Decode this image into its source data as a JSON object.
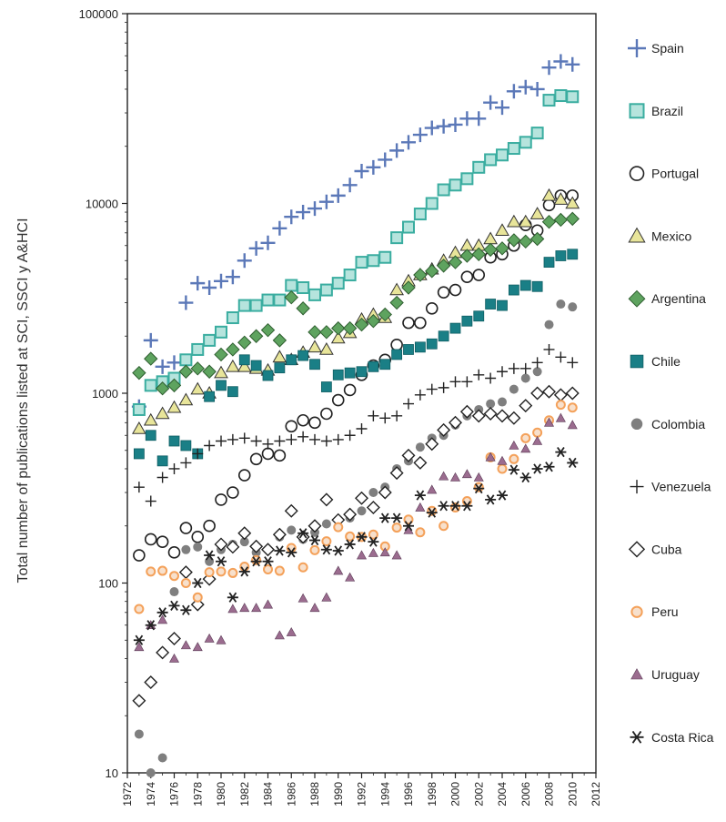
{
  "chart_data": {
    "type": "scatter",
    "title": "",
    "xlabel": "",
    "ylabel": "Total number of publications listed at SCI, SSCI y A&HCI",
    "yscale": "log",
    "ylim": [
      10,
      100000
    ],
    "xlim": [
      1972,
      2012
    ],
    "x_ticks": [
      "1972",
      "1974",
      "1976",
      "1978",
      "1980",
      "1982",
      "1984",
      "1986",
      "1988",
      "1990",
      "1992",
      "1994",
      "1996",
      "1998",
      "2000",
      "2002",
      "2004",
      "2006",
      "2008",
      "2010",
      "2012"
    ],
    "y_ticks": [
      "10",
      "100",
      "1000",
      "10000",
      "100000"
    ],
    "grid": false,
    "legend_position": "right",
    "x": [
      1973,
      1974,
      1975,
      1976,
      1977,
      1978,
      1979,
      1980,
      1981,
      1982,
      1983,
      1984,
      1985,
      1986,
      1987,
      1988,
      1989,
      1990,
      1991,
      1992,
      1993,
      1994,
      1995,
      1996,
      1997,
      1998,
      1999,
      2000,
      2001,
      2002,
      2003,
      2004,
      2005,
      2006,
      2007,
      2008,
      2009,
      2010
    ],
    "series": [
      {
        "name": "Spain",
        "marker": "plus-thick",
        "color": "#5b78b8",
        "values": [
          850,
          1900,
          1380,
          1450,
          3000,
          3800,
          3600,
          3900,
          4100,
          5000,
          5800,
          6200,
          7400,
          8500,
          9000,
          9400,
          10200,
          11000,
          12500,
          14800,
          15500,
          17000,
          19000,
          21000,
          23000,
          25000,
          25500,
          26000,
          28000,
          28000,
          34000,
          32000,
          39000,
          41000,
          40000,
          52000,
          56000,
          54000
        ]
      },
      {
        "name": "Brazil",
        "marker": "square-open",
        "color": "#3aada0",
        "values": [
          820,
          1100,
          1150,
          1200,
          1500,
          1700,
          1900,
          2100,
          2500,
          2900,
          2900,
          3100,
          3100,
          3700,
          3600,
          3300,
          3500,
          3800,
          4200,
          4900,
          5000,
          5200,
          6600,
          7500,
          8800,
          10000,
          11800,
          12500,
          13500,
          15500,
          17000,
          18000,
          19500,
          21000,
          23500,
          35000,
          37000,
          36500
        ]
      },
      {
        "name": "Portugal",
        "marker": "circle-open",
        "color": "#222222",
        "values": [
          140,
          170,
          165,
          145,
          195,
          175,
          200,
          275,
          300,
          370,
          450,
          480,
          470,
          670,
          720,
          700,
          780,
          920,
          1040,
          1250,
          1400,
          1500,
          1800,
          2350,
          2350,
          2800,
          3400,
          3500,
          4100,
          4200,
          5200,
          5400,
          6000,
          7700,
          7200,
          9800,
          11000,
          11000
        ]
      },
      {
        "name": "Mexico",
        "marker": "triangle",
        "color": "#e8e59a",
        "values": [
          650,
          720,
          780,
          840,
          920,
          1050,
          1000,
          1280,
          1380,
          1380,
          1350,
          1320,
          1550,
          1500,
          1640,
          1750,
          1700,
          1950,
          2080,
          2450,
          2600,
          2500,
          3500,
          3900,
          4200,
          4500,
          5000,
          5500,
          6000,
          6000,
          6500,
          7200,
          8000,
          8000,
          8800,
          11000,
          10500,
          10000
        ]
      },
      {
        "name": "Argentina",
        "marker": "diamond",
        "color": "#5ea35f",
        "values": [
          1280,
          1520,
          1060,
          1100,
          1300,
          1350,
          1300,
          1600,
          1700,
          1850,
          2000,
          2150,
          1900,
          3200,
          2800,
          2100,
          2100,
          2200,
          2200,
          2300,
          2400,
          2600,
          3000,
          3600,
          4200,
          4400,
          4700,
          4900,
          5300,
          5400,
          5700,
          5800,
          6400,
          6300,
          6500,
          8000,
          8200,
          8300
        ]
      },
      {
        "name": "Chile",
        "marker": "square",
        "color": "#1a7f86",
        "values": [
          480,
          600,
          440,
          560,
          530,
          480,
          960,
          1100,
          1020,
          1500,
          1400,
          1240,
          1360,
          1500,
          1580,
          1420,
          1080,
          1250,
          1280,
          1300,
          1380,
          1420,
          1600,
          1700,
          1750,
          1820,
          2000,
          2200,
          2400,
          2550,
          2950,
          2900,
          3500,
          3700,
          3650,
          4900,
          5300,
          5400
        ]
      },
      {
        "name": "Colombia",
        "marker": "circle",
        "color": "#7f7f7f",
        "values": [
          16,
          10,
          12,
          90,
          150,
          155,
          130,
          150,
          160,
          165,
          145,
          150,
          175,
          190,
          170,
          185,
          205,
          215,
          220,
          240,
          300,
          320,
          400,
          440,
          520,
          580,
          600,
          680,
          760,
          820,
          880,
          900,
          1050,
          1200,
          1300,
          2300,
          2950,
          2850
        ]
      },
      {
        "name": "Venezuela",
        "marker": "plus-thin",
        "color": "#222222",
        "values": [
          320,
          270,
          360,
          400,
          430,
          480,
          530,
          560,
          570,
          580,
          560,
          540,
          560,
          570,
          590,
          570,
          560,
          570,
          600,
          650,
          760,
          740,
          760,
          880,
          980,
          1050,
          1070,
          1150,
          1150,
          1250,
          1200,
          1300,
          1350,
          1350,
          1450,
          1700,
          1550,
          1450
        ]
      },
      {
        "name": "Cuba",
        "marker": "diamond-open",
        "color": "#222222",
        "values": [
          24,
          30,
          43,
          51,
          114,
          77,
          105,
          160,
          155,
          183,
          156,
          150,
          180,
          240,
          175,
          200,
          275,
          215,
          230,
          280,
          250,
          300,
          380,
          470,
          430,
          540,
          640,
          700,
          800,
          760,
          780,
          760,
          740,
          860,
          1000,
          1020,
          980,
          1000
        ]
      },
      {
        "name": "Peru",
        "marker": "circle-orange",
        "color": "#f4a15a",
        "values": [
          73,
          115,
          116,
          109,
          100,
          84,
          114,
          115,
          113,
          122,
          132,
          118,
          116,
          153,
          121,
          149,
          166,
          197,
          176,
          175,
          180,
          156,
          196,
          216,
          185,
          240,
          200,
          250,
          270,
          320,
          460,
          400,
          450,
          580,
          620,
          720,
          870,
          840
        ]
      },
      {
        "name": "Uruguay",
        "marker": "triangle-small",
        "color": "#9b6c8f",
        "values": [
          46,
          60,
          64,
          40,
          47,
          46,
          51,
          50,
          73,
          74,
          74,
          77,
          53,
          55,
          83,
          74,
          84,
          116,
          107,
          140,
          144,
          145,
          140,
          190,
          250,
          310,
          365,
          360,
          375,
          360,
          460,
          440,
          530,
          510,
          560,
          700,
          740,
          680
        ]
      },
      {
        "name": "Costa Rica",
        "marker": "asterisk",
        "color": "#222222",
        "values": [
          50,
          60,
          70,
          76,
          72,
          100,
          140,
          130,
          84,
          115,
          130,
          130,
          148,
          145,
          183,
          168,
          150,
          148,
          160,
          175,
          165,
          220,
          220,
          200,
          290,
          235,
          255,
          255,
          255,
          315,
          275,
          290,
          395,
          360,
          400,
          410,
          490,
          430
        ]
      }
    ]
  }
}
